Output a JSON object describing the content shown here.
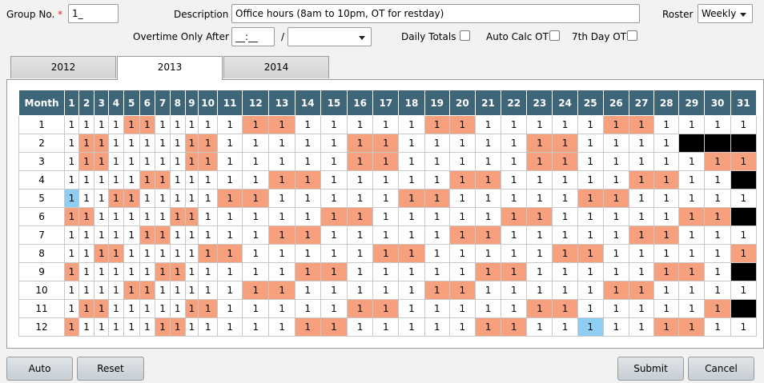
{
  "header": {
    "group_label": "Group No.",
    "required_mark": "*",
    "group_value": "1_",
    "description_label": "Description",
    "description_value": "Office hours (8am to 10pm, OT for restday)",
    "roster_label": "Roster",
    "roster_value": "Weekly",
    "overtime_label": "Overtime Only After",
    "overtime_value": "__:__",
    "overtime_separator": "/",
    "overtime_unit_value": "",
    "daily_totals_label": "Daily Totals",
    "auto_calc_label": "Auto Calc OT",
    "seventh_day_label": "7th Day OT"
  },
  "tabs": [
    {
      "label": "2012",
      "active": false
    },
    {
      "label": "2013",
      "active": true
    },
    {
      "label": "2014",
      "active": false
    }
  ],
  "calendar": {
    "month_header": "Month",
    "days": [
      "1",
      "2",
      "3",
      "4",
      "5",
      "6",
      "7",
      "8",
      "9",
      "10",
      "11",
      "12",
      "13",
      "14",
      "15",
      "16",
      "17",
      "18",
      "19",
      "20",
      "21",
      "22",
      "23",
      "24",
      "25",
      "26",
      "27",
      "28",
      "29",
      "30",
      "31"
    ],
    "cell_value": "1",
    "colors": {
      "highlight": "#f7a07e",
      "selected": "#8ecdf4",
      "unavailable": "#000000",
      "header": "#3f6579"
    },
    "months": [
      {
        "label": "1",
        "h": [
          5,
          6,
          12,
          13,
          19,
          20,
          26,
          27
        ],
        "s": [],
        "x": []
      },
      {
        "label": "2",
        "h": [
          2,
          3,
          9,
          10,
          16,
          17,
          23,
          24
        ],
        "s": [],
        "x": [
          29,
          30,
          31
        ]
      },
      {
        "label": "3",
        "h": [
          2,
          3,
          9,
          10,
          16,
          17,
          23,
          24,
          30,
          31
        ],
        "s": [],
        "x": []
      },
      {
        "label": "4",
        "h": [
          6,
          7,
          13,
          14,
          20,
          21,
          27,
          28
        ],
        "s": [],
        "x": [
          31
        ]
      },
      {
        "label": "5",
        "h": [
          4,
          5,
          11,
          12,
          18,
          19,
          25,
          26
        ],
        "s": [
          1
        ],
        "x": []
      },
      {
        "label": "6",
        "h": [
          1,
          2,
          8,
          9,
          15,
          16,
          22,
          23,
          29,
          30
        ],
        "s": [],
        "x": [
          31
        ]
      },
      {
        "label": "7",
        "h": [
          6,
          7,
          13,
          14,
          20,
          21,
          27,
          28
        ],
        "s": [],
        "x": []
      },
      {
        "label": "8",
        "h": [
          3,
          4,
          10,
          11,
          17,
          18,
          24,
          25,
          31
        ],
        "s": [],
        "x": []
      },
      {
        "label": "9",
        "h": [
          1,
          7,
          8,
          14,
          15,
          21,
          22,
          28,
          29
        ],
        "s": [],
        "x": [
          31
        ]
      },
      {
        "label": "10",
        "h": [
          5,
          6,
          12,
          13,
          19,
          20,
          26,
          27
        ],
        "s": [],
        "x": []
      },
      {
        "label": "11",
        "h": [
          2,
          3,
          9,
          10,
          16,
          17,
          23,
          24,
          30
        ],
        "s": [],
        "x": [
          31
        ]
      },
      {
        "label": "12",
        "h": [
          1,
          7,
          8,
          14,
          15,
          21,
          22,
          28,
          29
        ],
        "s": [
          25
        ],
        "x": []
      }
    ]
  },
  "buttons": {
    "auto": "Auto",
    "reset": "Reset",
    "submit": "Submit",
    "cancel": "Cancel"
  }
}
